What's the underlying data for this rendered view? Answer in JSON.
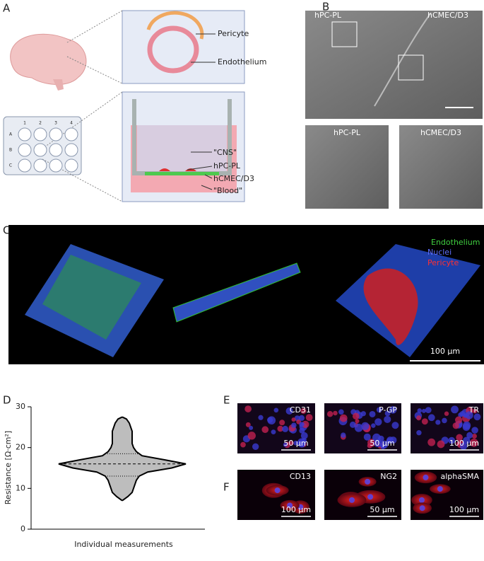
{
  "panel_labels": [
    "A",
    "B",
    "C",
    "D",
    "E",
    "F"
  ],
  "panel_a": {
    "plate_columns": [
      "1",
      "2",
      "3",
      "4"
    ],
    "plate_rows": [
      "A",
      "B",
      "C"
    ],
    "pericyte": "Pericyte",
    "endothelium": "Endothelium",
    "cns": "\"CNS\"",
    "hpc": "hPC-PL",
    "hcmec": "hCMEC/D3",
    "blood": "\"Blood\""
  },
  "panel_b": {
    "main_left": "hPC-PL",
    "main_right": "hCMEC/D3",
    "inset_left": "hPC-PL",
    "inset_right": "hCMEC/D3"
  },
  "panel_c": {
    "legend": [
      "Endothelium",
      "Nuclei",
      "Pericyte"
    ],
    "scale_bar": "100 µm"
  },
  "panel_e": [
    {
      "label": "CD31",
      "scale_bar": "50 µm"
    },
    {
      "label": "P-GP",
      "scale_bar": "50 µm"
    },
    {
      "label": "TR",
      "scale_bar": "100 µm"
    }
  ],
  "panel_f": [
    {
      "label": "CD13",
      "scale_bar": "100 µm"
    },
    {
      "label": "NG2",
      "scale_bar": "50 µm"
    },
    {
      "label": "alphaSMA",
      "scale_bar": "100 µm"
    }
  ],
  "chart_data": {
    "type": "violin",
    "y_label": "Resistance [Ω·cm²]",
    "x_label": "Individual measurements",
    "ylim": [
      0,
      30
    ],
    "yticks": [
      0,
      10,
      20,
      30
    ],
    "median": 16,
    "quartiles": [
      13,
      18.5
    ],
    "color": "#bdbdbd",
    "profile": {
      "y": [
        7,
        8,
        9,
        10,
        11,
        12,
        13,
        14,
        15,
        16,
        17,
        18,
        19,
        20,
        21,
        22,
        23,
        24,
        25,
        26,
        27,
        27.5
      ],
      "density": [
        0,
        4,
        7,
        8,
        9,
        10,
        12,
        18,
        35,
        45,
        30,
        14,
        10,
        8,
        7,
        7,
        7,
        7,
        6,
        5,
        3,
        0
      ]
    }
  }
}
